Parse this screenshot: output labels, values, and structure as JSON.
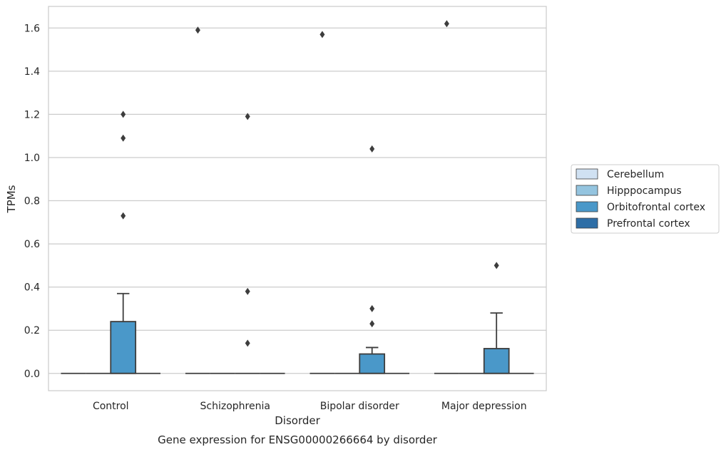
{
  "caption": "Gene expression for ENSG00000266664 by disorder",
  "chart_data": {
    "type": "box",
    "xlabel": "Disorder",
    "ylabel": "TPMs",
    "categories": [
      "Control",
      "Schizophrenia",
      "Bipolar disorder",
      "Major depression"
    ],
    "ylim": [
      -0.08,
      1.7
    ],
    "yticks": [
      0.0,
      0.2,
      0.4,
      0.6,
      0.8,
      1.0,
      1.2,
      1.4,
      1.6
    ],
    "ytick_labels": [
      "0.0",
      "0.2",
      "0.4",
      "0.6",
      "0.8",
      "1.0",
      "1.2",
      "1.4",
      "1.6"
    ],
    "grid": "horizontal",
    "legend": {
      "placement": "right",
      "entries": [
        "Cerebellum",
        "Hipppocampus",
        "Orbitofrontal cortex",
        "Prefrontal cortex"
      ]
    },
    "series": [
      {
        "name": "Cerebellum",
        "color": "#d0e1f2",
        "boxes": [
          {
            "q1": 0,
            "median": 0,
            "q3": 0,
            "whisker_low": 0,
            "whisker_high": 0,
            "outliers": []
          },
          {
            "q1": 0,
            "median": 0,
            "q3": 0,
            "whisker_low": 0,
            "whisker_high": 0,
            "outliers": [
              1.59
            ]
          },
          {
            "q1": 0,
            "median": 0,
            "q3": 0,
            "whisker_low": 0,
            "whisker_high": 0,
            "outliers": [
              1.57
            ]
          },
          {
            "q1": 0,
            "median": 0,
            "q3": 0,
            "whisker_low": 0,
            "whisker_high": 0,
            "outliers": [
              1.62
            ]
          }
        ]
      },
      {
        "name": "Hipppocampus",
        "color": "#94c4df",
        "boxes": [
          {
            "q1": 0,
            "median": 0,
            "q3": 0,
            "whisker_low": 0,
            "whisker_high": 0,
            "outliers": []
          },
          {
            "q1": 0,
            "median": 0,
            "q3": 0,
            "whisker_low": 0,
            "whisker_high": 0,
            "outliers": []
          },
          {
            "q1": 0,
            "median": 0,
            "q3": 0,
            "whisker_low": 0,
            "whisker_high": 0,
            "outliers": []
          },
          {
            "q1": 0,
            "median": 0,
            "q3": 0,
            "whisker_low": 0,
            "whisker_high": 0,
            "outliers": []
          }
        ]
      },
      {
        "name": "Orbitofrontal cortex",
        "color": "#4a98c9",
        "boxes": [
          {
            "q1": 0,
            "median": 0,
            "q3": 0.24,
            "whisker_low": 0,
            "whisker_high": 0.37,
            "outliers": [
              0.73,
              1.09,
              1.2
            ]
          },
          {
            "q1": 0,
            "median": 0,
            "q3": 0,
            "whisker_low": 0,
            "whisker_high": 0,
            "outliers": [
              0.14,
              0.38,
              1.19
            ]
          },
          {
            "q1": 0,
            "median": 0,
            "q3": 0.09,
            "whisker_low": 0,
            "whisker_high": 0.12,
            "outliers": [
              0.23,
              0.3,
              1.04
            ]
          },
          {
            "q1": 0,
            "median": 0,
            "q3": 0.115,
            "whisker_low": 0,
            "whisker_high": 0.28,
            "outliers": [
              0.5
            ]
          }
        ]
      },
      {
        "name": "Prefrontal cortex",
        "color": "#2e6ea6",
        "boxes": [
          {
            "q1": 0,
            "median": 0,
            "q3": 0,
            "whisker_low": 0,
            "whisker_high": 0,
            "outliers": []
          },
          {
            "q1": 0,
            "median": 0,
            "q3": 0,
            "whisker_low": 0,
            "whisker_high": 0,
            "outliers": []
          },
          {
            "q1": 0,
            "median": 0,
            "q3": 0,
            "whisker_low": 0,
            "whisker_high": 0,
            "outliers": []
          },
          {
            "q1": 0,
            "median": 0,
            "q3": 0,
            "whisker_low": 0,
            "whisker_high": 0,
            "outliers": []
          }
        ]
      }
    ]
  }
}
